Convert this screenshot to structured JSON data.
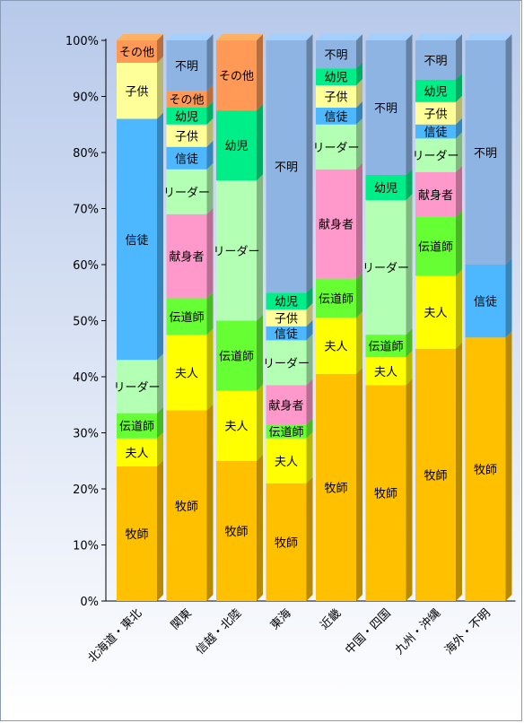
{
  "chart_data": {
    "type": "bar",
    "stacked": true,
    "percent": true,
    "title": "",
    "xlabel": "",
    "ylabel": "",
    "ylim": [
      0,
      100
    ],
    "y_ticks": [
      "0%",
      "10%",
      "20%",
      "30%",
      "40%",
      "50%",
      "60%",
      "70%",
      "80%",
      "90%",
      "100%"
    ],
    "grid": false,
    "legend": "none",
    "categories": [
      "北海道・東北",
      "関東",
      "信越・北陸",
      "東海",
      "近畿",
      "中国・四国",
      "九州・沖縄",
      "海外・不明"
    ],
    "series": [
      {
        "name": "牧師",
        "color": "#ffc000",
        "values": [
          24,
          34,
          25,
          21,
          40.5,
          38.5,
          45,
          47
        ]
      },
      {
        "name": "夫人",
        "color": "#ffff00",
        "values": [
          5,
          13.5,
          12.5,
          8,
          10,
          5,
          13,
          0
        ]
      },
      {
        "name": "伝道師",
        "color": "#66ff33",
        "values": [
          4.5,
          6.5,
          12.5,
          2.5,
          7,
          4,
          10.5,
          0
        ]
      },
      {
        "name": "献身者",
        "color": "#ff99cc",
        "values": [
          0,
          15,
          0,
          7,
          19.5,
          0,
          8,
          0
        ]
      },
      {
        "name": "リーダー",
        "color": "#b3ffb3",
        "values": [
          9.5,
          8,
          25,
          8,
          8,
          24,
          6,
          0
        ]
      },
      {
        "name": "信徒",
        "color": "#4db8ff",
        "values": [
          43,
          4,
          0,
          2.5,
          3,
          0,
          2.5,
          13
        ]
      },
      {
        "name": "子供",
        "color": "#ffff99",
        "values": [
          10,
          4,
          0,
          3,
          4,
          0,
          4,
          0
        ]
      },
      {
        "name": "幼児",
        "color": "#00ee88",
        "values": [
          0,
          3,
          12.5,
          3,
          3,
          4.5,
          4,
          0
        ]
      },
      {
        "name": "その他",
        "color": "#ff9955",
        "values": [
          4,
          3,
          12.5,
          0,
          0,
          0,
          0,
          0
        ]
      },
      {
        "name": "不明",
        "color": "#8eb4e3",
        "values": [
          0,
          9,
          0,
          45,
          5,
          24,
          7,
          40
        ]
      }
    ]
  }
}
